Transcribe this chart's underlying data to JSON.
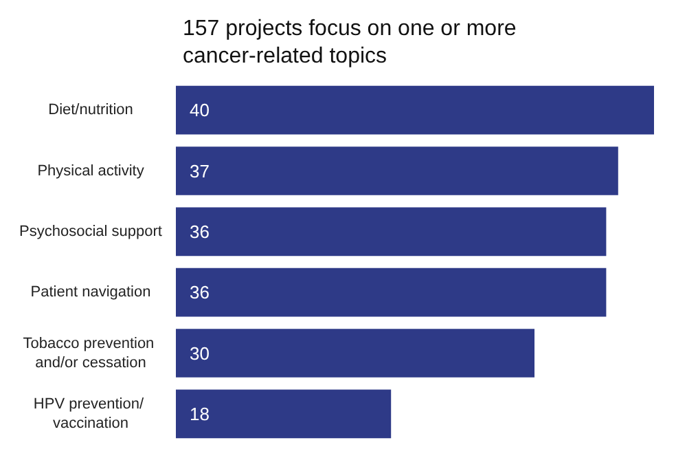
{
  "chart_data": {
    "type": "bar",
    "orientation": "horizontal",
    "title": "157 projects focus on one or more cancer-related topics",
    "categories": [
      "Diet/nutrition",
      "Physical activity",
      "Psychosocial support",
      "Patient navigation",
      "Tobacco prevention and/or cessation",
      "HPV prevention/ vaccination"
    ],
    "values": [
      40,
      37,
      36,
      36,
      30,
      18
    ],
    "color": "#2e3a87",
    "data_labels": true,
    "grid": false
  }
}
